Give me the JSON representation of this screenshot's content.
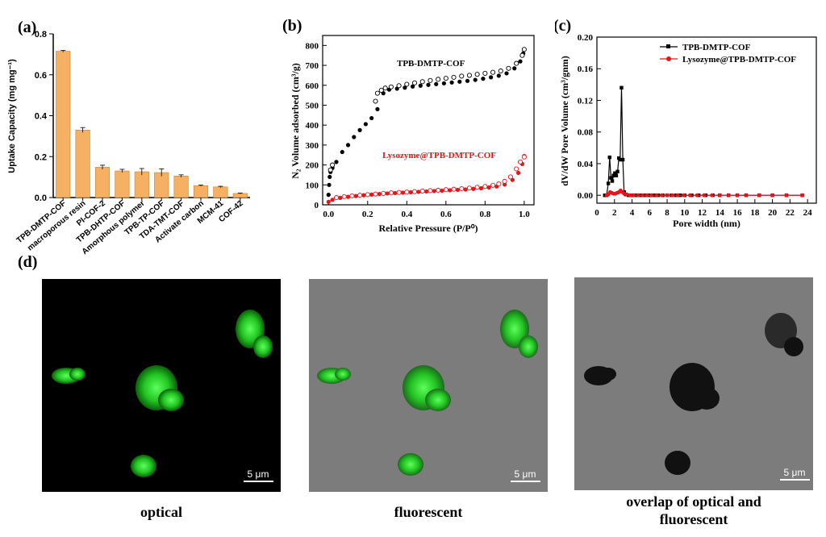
{
  "panels": {
    "a": "(a)",
    "b": "(b)",
    "c": "(c)",
    "d": "(d)"
  },
  "chart_data": [
    {
      "type": "bar",
      "panel": "(a)",
      "ylabel": "Uptake Capacity (mg mg⁻¹)",
      "ylim": [
        0,
        0.8
      ],
      "yticks": [
        "0.0",
        "0.2",
        "0.4",
        "0.6",
        "0.8"
      ],
      "categories": [
        "TPB-DMTP-COF",
        "macroporous resin",
        "PI-COF-2",
        "TPB-DHTP-COF",
        "Amorphous polymer",
        "TPB-TP-COF",
        "TDA-TMT-COF",
        "Activate carbon",
        "MCM-41",
        "COF-42"
      ],
      "values": [
        0.715,
        0.33,
        0.148,
        0.13,
        0.126,
        0.122,
        0.105,
        0.058,
        0.052,
        0.02
      ],
      "errors": [
        0.004,
        0.012,
        0.01,
        0.008,
        0.016,
        0.018,
        0.006,
        0.003,
        0.003,
        0.002
      ],
      "bar_color": "#f5b063"
    },
    {
      "type": "scatter",
      "panel": "(b)",
      "xlabel": "Relative Pressure (P/P⁰)",
      "ylabel": "N₂ Volume adsorbed (cm³/g)",
      "xlim": [
        -0.03,
        1.05
      ],
      "ylim": [
        0,
        850
      ],
      "xticks": [
        "0.0",
        "0.2",
        "0.4",
        "0.6",
        "0.8",
        "1.0"
      ],
      "yticks": [
        "0",
        "100",
        "200",
        "300",
        "400",
        "500",
        "600",
        "700",
        "800"
      ],
      "series": [
        {
          "name": "TPB-DMTP-COF",
          "color": "#000000",
          "adsorption": [
            [
              0.0,
              50
            ],
            [
              0.003,
              100
            ],
            [
              0.006,
              140
            ],
            [
              0.01,
              165
            ],
            [
              0.02,
              185
            ],
            [
              0.04,
              215
            ],
            [
              0.07,
              265
            ],
            [
              0.1,
              300
            ],
            [
              0.13,
              340
            ],
            [
              0.16,
              375
            ],
            [
              0.19,
              405
            ],
            [
              0.22,
              435
            ],
            [
              0.25,
              480
            ],
            [
              0.28,
              560
            ],
            [
              0.31,
              578
            ],
            [
              0.35,
              583
            ],
            [
              0.39,
              588
            ],
            [
              0.43,
              594
            ],
            [
              0.47,
              598
            ],
            [
              0.51,
              602
            ],
            [
              0.55,
              606
            ],
            [
              0.59,
              610
            ],
            [
              0.63,
              614
            ],
            [
              0.67,
              618
            ],
            [
              0.71,
              622
            ],
            [
              0.75,
              627
            ],
            [
              0.79,
              633
            ],
            [
              0.83,
              640
            ],
            [
              0.87,
              648
            ],
            [
              0.91,
              660
            ],
            [
              0.95,
              685
            ],
            [
              0.98,
              720
            ],
            [
              0.995,
              760
            ]
          ],
          "desorption": [
            [
              1.0,
              780
            ],
            [
              0.99,
              750
            ],
            [
              0.96,
              710
            ],
            [
              0.92,
              685
            ],
            [
              0.88,
              672
            ],
            [
              0.84,
              665
            ],
            [
              0.8,
              660
            ],
            [
              0.76,
              655
            ],
            [
              0.72,
              650
            ],
            [
              0.68,
              646
            ],
            [
              0.64,
              640
            ],
            [
              0.6,
              635
            ],
            [
              0.56,
              630
            ],
            [
              0.52,
              624
            ],
            [
              0.48,
              618
            ],
            [
              0.44,
              612
            ],
            [
              0.4,
              605
            ],
            [
              0.36,
              598
            ],
            [
              0.32,
              592
            ],
            [
              0.29,
              586
            ],
            [
              0.27,
              575
            ],
            [
              0.25,
              560
            ],
            [
              0.24,
              520
            ],
            [
              0.02,
              200
            ],
            [
              0.01,
              175
            ]
          ]
        },
        {
          "name": "Lysozyme@TPB-DMTP-COF",
          "color": "#e8141c",
          "adsorption": [
            [
              0.0,
              15
            ],
            [
              0.02,
              25
            ],
            [
              0.06,
              35
            ],
            [
              0.1,
              40
            ],
            [
              0.14,
              44
            ],
            [
              0.18,
              48
            ],
            [
              0.22,
              51
            ],
            [
              0.26,
              54
            ],
            [
              0.3,
              57
            ],
            [
              0.34,
              59
            ],
            [
              0.38,
              61
            ],
            [
              0.42,
              63
            ],
            [
              0.46,
              65
            ],
            [
              0.5,
              67
            ],
            [
              0.54,
              69
            ],
            [
              0.58,
              71
            ],
            [
              0.62,
              73
            ],
            [
              0.66,
              75
            ],
            [
              0.7,
              77
            ],
            [
              0.74,
              80
            ],
            [
              0.78,
              83
            ],
            [
              0.82,
              87
            ],
            [
              0.86,
              92
            ],
            [
              0.9,
              102
            ],
            [
              0.94,
              125
            ],
            [
              0.97,
              160
            ],
            [
              0.99,
              205
            ],
            [
              1.0,
              245
            ]
          ],
          "desorption": [
            [
              1.0,
              240
            ],
            [
              0.98,
              215
            ],
            [
              0.96,
              180
            ],
            [
              0.93,
              140
            ],
            [
              0.9,
              118
            ],
            [
              0.87,
              105
            ],
            [
              0.84,
              98
            ],
            [
              0.8,
              92
            ],
            [
              0.76,
              88
            ],
            [
              0.72,
              84
            ],
            [
              0.68,
              81
            ],
            [
              0.64,
              78
            ],
            [
              0.6,
              76
            ],
            [
              0.56,
              73
            ],
            [
              0.52,
              71
            ],
            [
              0.48,
              69
            ],
            [
              0.44,
              66
            ],
            [
              0.4,
              64
            ],
            [
              0.36,
              62
            ],
            [
              0.32,
              60
            ],
            [
              0.28,
              57
            ],
            [
              0.24,
              54
            ],
            [
              0.2,
              51
            ],
            [
              0.16,
              48
            ],
            [
              0.12,
              45
            ],
            [
              0.08,
              41
            ],
            [
              0.04,
              36
            ]
          ]
        }
      ]
    },
    {
      "type": "line",
      "panel": "(c)",
      "xlabel": "Pore width (nm)",
      "ylabel": "dV/dW Pore Volume (cm³/gnm)",
      "xlim": [
        0,
        25
      ],
      "ylim": [
        -0.01,
        0.2
      ],
      "xticks": [
        "0",
        "2",
        "4",
        "6",
        "8",
        "10",
        "12",
        "14",
        "16",
        "18",
        "20",
        "22",
        "24"
      ],
      "yticks": [
        "0.00",
        "0.04",
        "0.08",
        "0.12",
        "0.16",
        "0.20"
      ],
      "legend_position": "top-right",
      "series": [
        {
          "name": "TPB-DMTP-COF",
          "color": "#000000",
          "marker": "square",
          "points": [
            [
              0.9,
              0.0
            ],
            [
              1.1,
              0.0
            ],
            [
              1.3,
              0.015
            ],
            [
              1.45,
              0.048
            ],
            [
              1.6,
              0.022
            ],
            [
              1.75,
              0.018
            ],
            [
              1.9,
              0.025
            ],
            [
              2.05,
              0.028
            ],
            [
              2.2,
              0.025
            ],
            [
              2.35,
              0.03
            ],
            [
              2.5,
              0.047
            ],
            [
              2.65,
              0.045
            ],
            [
              2.8,
              0.136
            ],
            [
              2.95,
              0.045
            ],
            [
              3.1,
              0.004
            ],
            [
              3.3,
              0.001
            ],
            [
              3.6,
              0.0
            ],
            [
              4.0,
              0.0
            ],
            [
              4.5,
              0.0
            ],
            [
              5.0,
              0.0
            ],
            [
              5.5,
              0.0
            ],
            [
              6.0,
              0.0
            ],
            [
              6.5,
              0.0
            ],
            [
              7.0,
              0.0
            ],
            [
              7.5,
              0.0
            ],
            [
              8.0,
              0.0
            ],
            [
              8.5,
              0.0
            ],
            [
              9.0,
              0.0
            ],
            [
              9.5,
              0.0
            ],
            [
              10.0,
              0.0
            ],
            [
              10.8,
              0.0
            ],
            [
              11.6,
              0.0
            ],
            [
              12.4,
              0.0
            ],
            [
              13.2,
              0.0
            ],
            [
              14.0,
              0.0
            ],
            [
              15.0,
              0.0
            ],
            [
              16.0,
              0.0
            ],
            [
              17.0,
              0.0
            ],
            [
              18.5,
              0.0
            ],
            [
              20.0,
              0.0
            ],
            [
              21.6,
              0.0
            ],
            [
              23.4,
              0.0
            ]
          ]
        },
        {
          "name": "Lysozyme@TPB-DMTP-COF",
          "color": "#e8141c",
          "marker": "circle",
          "points": [
            [
              1.1,
              0.0
            ],
            [
              1.3,
              0.001
            ],
            [
              1.5,
              0.004
            ],
            [
              1.7,
              0.003
            ],
            [
              1.9,
              0.002
            ],
            [
              2.1,
              0.002
            ],
            [
              2.3,
              0.003
            ],
            [
              2.5,
              0.004
            ],
            [
              2.7,
              0.006
            ],
            [
              2.9,
              0.004
            ],
            [
              3.1,
              0.002
            ],
            [
              3.4,
              0.001
            ],
            [
              3.8,
              0.0
            ],
            [
              4.2,
              0.0
            ],
            [
              4.7,
              0.0
            ],
            [
              5.2,
              0.0
            ],
            [
              5.7,
              0.0
            ],
            [
              6.2,
              0.0
            ],
            [
              6.8,
              0.0
            ],
            [
              7.4,
              0.0
            ],
            [
              8.0,
              0.0
            ],
            [
              8.6,
              0.0
            ],
            [
              9.2,
              0.0
            ],
            [
              9.9,
              0.0
            ],
            [
              10.6,
              0.0
            ],
            [
              11.4,
              0.0
            ],
            [
              12.2,
              0.0
            ],
            [
              13.1,
              0.0
            ],
            [
              14.0,
              0.0
            ],
            [
              15.0,
              0.0
            ],
            [
              16.0,
              0.0
            ],
            [
              17.0,
              0.0
            ],
            [
              18.5,
              0.0
            ],
            [
              20.0,
              0.0
            ],
            [
              21.6,
              0.0
            ],
            [
              23.4,
              0.0
            ]
          ]
        }
      ]
    }
  ],
  "micrographs": [
    {
      "caption": "optical",
      "scale": "5 μm"
    },
    {
      "caption": "fluorescent",
      "scale": "5 μm"
    },
    {
      "caption": "overlap of optical and fluorescent",
      "scale": "5 μm"
    }
  ]
}
